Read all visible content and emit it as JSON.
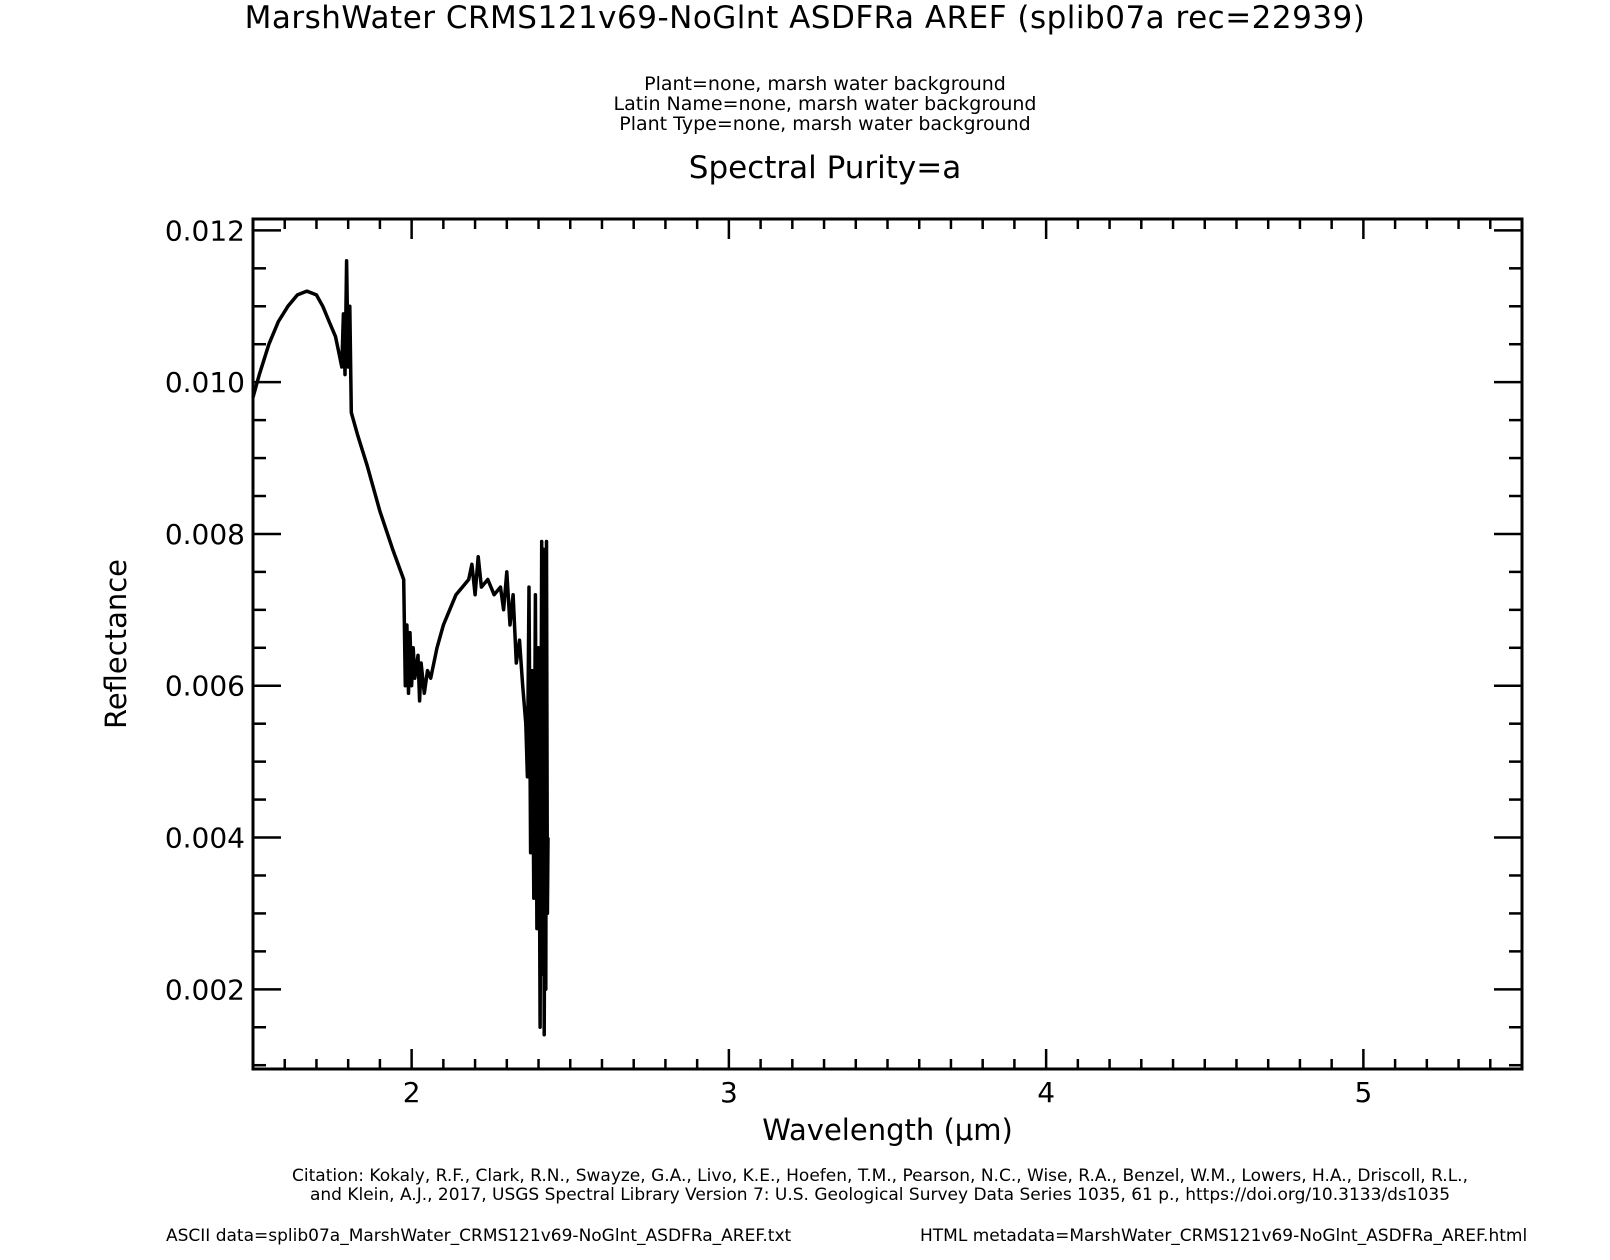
{
  "header": {
    "title": "MarshWater CRMS121v69-NoGlnt ASDFRa AREF    (splib07a rec=22939)",
    "plant": "Plant=none, marsh water background",
    "latin_name": "Latin Name=none, marsh water background",
    "plant_type": "Plant Type=none, marsh water background",
    "purity": "Spectral Purity=a"
  },
  "footer": {
    "citation_line1": "Citation: Kokaly, R.F., Clark, R.N., Swayze, G.A., Livo, K.E., Hoefen, T.M., Pearson, N.C., Wise, R.A., Benzel, W.M., Lowers, H.A., Driscoll, R.L.,",
    "citation_line2": "and Klein, A.J., 2017, USGS Spectral Library Version 7: U.S. Geological Survey Data Series 1035, 61 p., https://doi.org/10.3133/ds1035",
    "ascii": "ASCII data=splib07a_MarshWater_CRMS121v69-NoGlnt_ASDFRa_AREF.txt",
    "html_meta": "HTML metadata=MarshWater_CRMS121v69-NoGlnt_ASDFRa_AREF.html"
  },
  "chart_data": {
    "type": "line",
    "title": "Spectral Purity=a",
    "xlabel": "Wavelength (μm)",
    "ylabel": "Reflectance",
    "xlim": [
      1.5,
      5.5
    ],
    "ylim": [
      0.00095,
      0.01215
    ],
    "x_ticks": [
      2,
      3,
      4,
      5
    ],
    "x_tick_labels": [
      "2",
      "3",
      "4",
      "5"
    ],
    "y_ticks": [
      0.002,
      0.004,
      0.006,
      0.008,
      0.01,
      0.012
    ],
    "y_tick_labels": [
      "0.002",
      "0.004",
      "0.006",
      "0.008",
      "0.010",
      "0.012"
    ],
    "grid": false,
    "line_color": "#000000",
    "series": [
      {
        "x": [
          1.5,
          1.52,
          1.55,
          1.58,
          1.61,
          1.64,
          1.67,
          1.7,
          1.72,
          1.74,
          1.76,
          1.77,
          1.78,
          1.785,
          1.79,
          1.795,
          1.8,
          1.805,
          1.81,
          1.83,
          1.86,
          1.9,
          1.94,
          1.975,
          1.98,
          1.985,
          1.99,
          1.995,
          2.0,
          2.005,
          2.01,
          2.02,
          2.025,
          2.03,
          2.04,
          2.05,
          2.06,
          2.08,
          2.1,
          2.12,
          2.14,
          2.16,
          2.18,
          2.19,
          2.2,
          2.21,
          2.22,
          2.24,
          2.26,
          2.28,
          2.29,
          2.3,
          2.31,
          2.32,
          2.33,
          2.34,
          2.35,
          2.36,
          2.365,
          2.37,
          2.375,
          2.38,
          2.385,
          2.39,
          2.395,
          2.4,
          2.405,
          2.41,
          2.412,
          2.415,
          2.418,
          2.42,
          2.423,
          2.425,
          2.428,
          2.43
        ],
        "y": [
          0.0098,
          0.0101,
          0.0105,
          0.0108,
          0.011,
          0.01115,
          0.0112,
          0.01115,
          0.011,
          0.0108,
          0.0106,
          0.0104,
          0.0102,
          0.0109,
          0.0101,
          0.0116,
          0.0102,
          0.011,
          0.0096,
          0.0093,
          0.0089,
          0.0083,
          0.0078,
          0.0074,
          0.006,
          0.0068,
          0.0059,
          0.0067,
          0.006,
          0.0065,
          0.0061,
          0.0064,
          0.0058,
          0.0063,
          0.0059,
          0.0062,
          0.0061,
          0.0065,
          0.0068,
          0.007,
          0.0072,
          0.0073,
          0.0074,
          0.0076,
          0.0072,
          0.0077,
          0.0073,
          0.0074,
          0.0072,
          0.0073,
          0.007,
          0.0075,
          0.0068,
          0.0072,
          0.0063,
          0.0066,
          0.006,
          0.0055,
          0.0048,
          0.0073,
          0.0038,
          0.0062,
          0.0032,
          0.0072,
          0.0028,
          0.0065,
          0.0015,
          0.0079,
          0.0022,
          0.0078,
          0.0014,
          0.0041,
          0.002,
          0.0079,
          0.003,
          0.004
        ]
      }
    ]
  }
}
